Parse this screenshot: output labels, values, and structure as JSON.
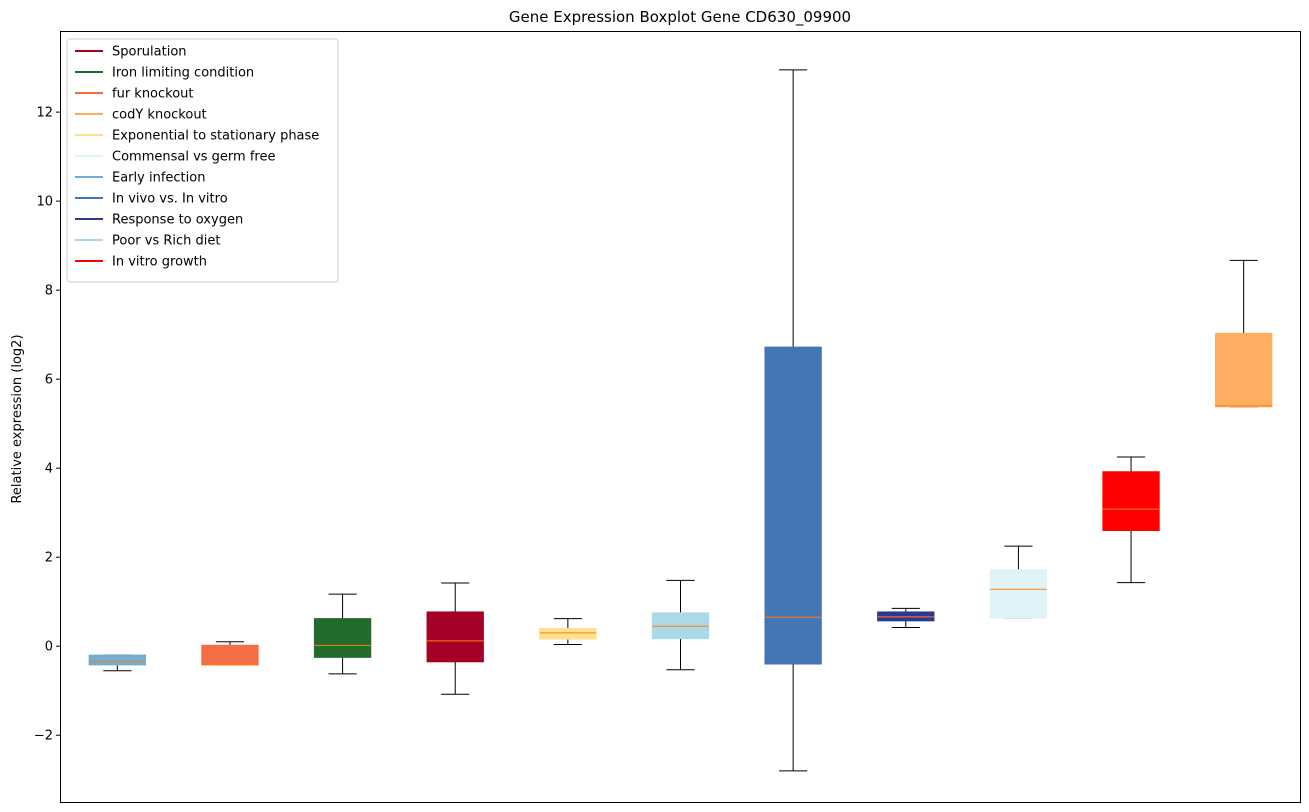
{
  "chart_data": {
    "type": "boxplot",
    "title": "Gene Expression Boxplot Gene CD630_09900",
    "ylabel": "Relative expression (log2)",
    "xlabel": "",
    "ylim": [
      -3.5,
      13.8
    ],
    "yticks": [
      -2,
      0,
      2,
      4,
      6,
      8,
      10,
      12
    ],
    "ytick_labels": [
      "−2",
      "0",
      "2",
      "4",
      "6",
      "8",
      "10",
      "12"
    ],
    "grid": false,
    "legend": {
      "placement": "top-left",
      "entries": [
        {
          "label": "Sporulation",
          "color": "#a50026"
        },
        {
          "label": "Iron limiting condition",
          "color": "#236b2c"
        },
        {
          "label": "fur knockout",
          "color": "#f46d43"
        },
        {
          "label": "codY knockout",
          "color": "#fdae61"
        },
        {
          "label": "Exponential to stationary phase",
          "color": "#fee090"
        },
        {
          "label": "Commensal vs germ free",
          "color": "#e0f3f8"
        },
        {
          "label": "Early infection",
          "color": "#74add1"
        },
        {
          "label": "In vivo vs. In vitro",
          "color": "#4575b4"
        },
        {
          "label": "Response to oxygen",
          "color": "#313695"
        },
        {
          "label": "Poor vs Rich diet",
          "color": "#abd9e9"
        },
        {
          "label": "In vitro growth",
          "color": "#ff0000"
        }
      ]
    },
    "boxes": [
      {
        "condition": "Early infection",
        "color": "#74add1",
        "whisker_low": -0.55,
        "q1": -0.42,
        "median": -0.35,
        "q3": -0.2,
        "whisker_high": -0.2
      },
      {
        "condition": "fur knockout",
        "color": "#f46d43",
        "whisker_low": -0.42,
        "q1": -0.42,
        "median": -0.42,
        "q3": 0.02,
        "whisker_high": 0.1
      },
      {
        "condition": "Iron limiting condition",
        "color": "#236b2c",
        "whisker_low": -0.62,
        "q1": -0.25,
        "median": 0.02,
        "q3": 0.62,
        "whisker_high": 1.17
      },
      {
        "condition": "Sporulation",
        "color": "#a50026",
        "whisker_low": -1.08,
        "q1": -0.35,
        "median": 0.12,
        "q3": 0.77,
        "whisker_high": 1.42
      },
      {
        "condition": "Exponential to stationary phase",
        "color": "#fee090",
        "whisker_low": 0.04,
        "q1": 0.16,
        "median": 0.3,
        "q3": 0.4,
        "whisker_high": 0.62
      },
      {
        "condition": "Poor vs Rich diet",
        "color": "#abd9e9",
        "whisker_low": -0.53,
        "q1": 0.17,
        "median": 0.45,
        "q3": 0.75,
        "whisker_high": 1.48
      },
      {
        "condition": "In vivo vs. In vitro",
        "color": "#4575b4",
        "whisker_low": -2.8,
        "q1": -0.4,
        "median": 0.65,
        "q3": 6.72,
        "whisker_high": 12.95
      },
      {
        "condition": "Response to oxygen",
        "color": "#313695",
        "whisker_low": 0.42,
        "q1": 0.57,
        "median": 0.66,
        "q3": 0.77,
        "whisker_high": 0.85
      },
      {
        "condition": "Commensal vs germ free",
        "color": "#e0f3f8",
        "whisker_low": 0.63,
        "q1": 0.63,
        "median": 1.28,
        "q3": 1.72,
        "whisker_high": 2.25
      },
      {
        "condition": "In vitro growth",
        "color": "#ff0000",
        "whisker_low": 1.43,
        "q1": 2.6,
        "median": 3.08,
        "q3": 3.92,
        "whisker_high": 4.25
      },
      {
        "condition": "codY knockout",
        "color": "#fdae61",
        "whisker_low": 5.38,
        "q1": 5.38,
        "median": 5.4,
        "q3": 7.03,
        "whisker_high": 8.67
      }
    ],
    "median_color": "#ff7f0e"
  }
}
